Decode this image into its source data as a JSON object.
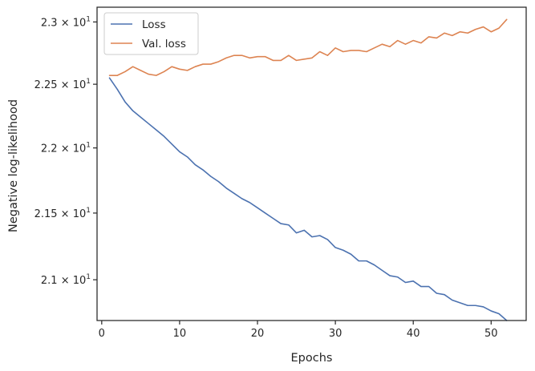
{
  "chart_data": {
    "type": "line",
    "xlabel": "Epochs",
    "ylabel": "Negative log-likelihood",
    "y_scale": "log",
    "xlim": [
      -0.6,
      54.5
    ],
    "ylim": [
      20.7,
      23.12
    ],
    "x_ticks": [
      0,
      10,
      20,
      30,
      40,
      50
    ],
    "y_ticks": [
      {
        "value": 21.0,
        "mantissa": "2.1",
        "base": "10",
        "exp": "1"
      },
      {
        "value": 21.5,
        "mantissa": "2.15",
        "base": "10",
        "exp": "1"
      },
      {
        "value": 22.0,
        "mantissa": "2.2",
        "base": "10",
        "exp": "1"
      },
      {
        "value": 22.5,
        "mantissa": "2.25",
        "base": "10",
        "exp": "1"
      },
      {
        "value": 23.0,
        "mantissa": "2.3",
        "base": "10",
        "exp": "1"
      }
    ],
    "legend_position": "top-left",
    "grid": false,
    "x": [
      1,
      2,
      3,
      4,
      5,
      6,
      7,
      8,
      9,
      10,
      11,
      12,
      13,
      14,
      15,
      16,
      17,
      18,
      19,
      20,
      21,
      22,
      23,
      24,
      25,
      26,
      27,
      28,
      29,
      30,
      31,
      32,
      33,
      34,
      35,
      36,
      37,
      38,
      39,
      40,
      41,
      42,
      43,
      44,
      45,
      46,
      47,
      48,
      49,
      50,
      51,
      52
    ],
    "series": [
      {
        "name": "Loss",
        "color": "#4c72b0",
        "values": [
          22.55,
          22.46,
          22.36,
          22.29,
          22.24,
          22.19,
          22.14,
          22.09,
          22.03,
          21.97,
          21.93,
          21.87,
          21.83,
          21.78,
          21.74,
          21.69,
          21.65,
          21.61,
          21.58,
          21.54,
          21.5,
          21.46,
          21.42,
          21.41,
          21.35,
          21.37,
          21.32,
          21.33,
          21.3,
          21.24,
          21.22,
          21.19,
          21.14,
          21.14,
          21.11,
          21.07,
          21.03,
          21.02,
          20.98,
          20.99,
          20.95,
          20.95,
          20.9,
          20.89,
          20.85,
          20.83,
          20.81,
          20.81,
          20.8,
          20.77,
          20.75,
          20.7
        ]
      },
      {
        "name": "Val. loss",
        "color": "#dd8452",
        "values": [
          22.57,
          22.57,
          22.6,
          22.64,
          22.61,
          22.58,
          22.57,
          22.6,
          22.64,
          22.62,
          22.61,
          22.64,
          22.66,
          22.66,
          22.68,
          22.71,
          22.73,
          22.73,
          22.71,
          22.72,
          22.72,
          22.69,
          22.69,
          22.73,
          22.69,
          22.7,
          22.71,
          22.76,
          22.73,
          22.79,
          22.76,
          22.77,
          22.77,
          22.76,
          22.79,
          22.82,
          22.8,
          22.85,
          22.82,
          22.85,
          22.83,
          22.88,
          22.87,
          22.91,
          22.89,
          22.92,
          22.91,
          22.94,
          22.96,
          22.92,
          22.95,
          23.02
        ]
      }
    ]
  }
}
